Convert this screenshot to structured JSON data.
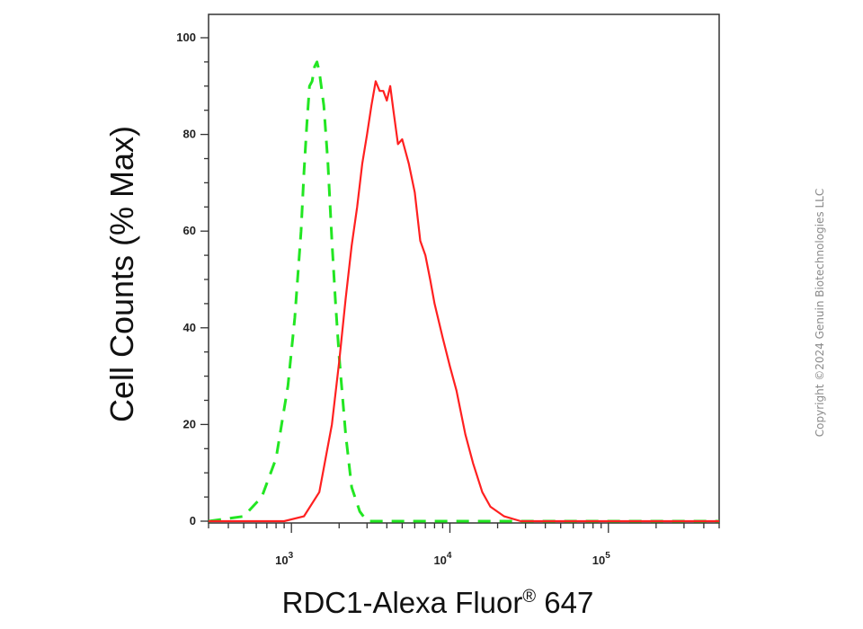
{
  "chart_data": {
    "type": "line",
    "x_scale": "log",
    "xlim": [
      300,
      500000
    ],
    "ylim": [
      0,
      105
    ],
    "xlabel": "RDC1-Alexa Fluor® 647",
    "xlabel_main": "RDC1-Alexa Fluor",
    "xlabel_sup": "®",
    "xlabel_tail": " 647",
    "ylabel": "Cell Counts (% Max)",
    "y_ticks": [
      {
        "value": 0,
        "label": "0"
      },
      {
        "value": 20,
        "label": "20"
      },
      {
        "value": 40,
        "label": "40"
      },
      {
        "value": 60,
        "label": "60"
      },
      {
        "value": 80,
        "label": "80"
      },
      {
        "value": 100,
        "label": "100"
      }
    ],
    "x_ticks": [
      {
        "value": 1000,
        "base": "10",
        "exp": "3"
      },
      {
        "value": 10000,
        "base": "10",
        "exp": "4"
      },
      {
        "value": 100000,
        "base": "10",
        "exp": "5"
      }
    ],
    "grid": false,
    "legend": "none",
    "series": [
      {
        "color": "#22e622",
        "style": "dashed",
        "points": [
          [
            300,
            0
          ],
          [
            500,
            1
          ],
          [
            650,
            5
          ],
          [
            800,
            13
          ],
          [
            950,
            28
          ],
          [
            1050,
            42
          ],
          [
            1150,
            60
          ],
          [
            1200,
            72
          ],
          [
            1250,
            82
          ],
          [
            1300,
            90
          ],
          [
            1350,
            91
          ],
          [
            1400,
            94
          ],
          [
            1450,
            95
          ],
          [
            1500,
            93
          ],
          [
            1600,
            86
          ],
          [
            1700,
            74
          ],
          [
            1800,
            58
          ],
          [
            1900,
            45
          ],
          [
            2000,
            34
          ],
          [
            2200,
            18
          ],
          [
            2400,
            7
          ],
          [
            2700,
            2
          ],
          [
            3000,
            0
          ],
          [
            10000,
            0
          ],
          [
            500000,
            0
          ]
        ]
      },
      {
        "color": "#ff2020",
        "style": "solid",
        "points": [
          [
            300,
            0
          ],
          [
            900,
            0
          ],
          [
            1200,
            1
          ],
          [
            1500,
            6
          ],
          [
            1800,
            20
          ],
          [
            2000,
            33
          ],
          [
            2200,
            46
          ],
          [
            2400,
            57
          ],
          [
            2600,
            65
          ],
          [
            2800,
            74
          ],
          [
            3000,
            80
          ],
          [
            3200,
            86
          ],
          [
            3400,
            91
          ],
          [
            3600,
            89
          ],
          [
            3800,
            89
          ],
          [
            4000,
            87
          ],
          [
            4200,
            90
          ],
          [
            4400,
            85
          ],
          [
            4700,
            78
          ],
          [
            5000,
            79
          ],
          [
            5500,
            74
          ],
          [
            6000,
            68
          ],
          [
            6500,
            58
          ],
          [
            7000,
            55
          ],
          [
            7500,
            50
          ],
          [
            8000,
            45
          ],
          [
            9000,
            38
          ],
          [
            10000,
            32
          ],
          [
            11000,
            27
          ],
          [
            12500,
            18
          ],
          [
            14000,
            12
          ],
          [
            16000,
            6
          ],
          [
            18000,
            3
          ],
          [
            22000,
            1
          ],
          [
            28000,
            0
          ],
          [
            500000,
            0
          ]
        ]
      }
    ]
  },
  "copyright": "Copyright ©2024 Genuin Biotechnologies LLC"
}
